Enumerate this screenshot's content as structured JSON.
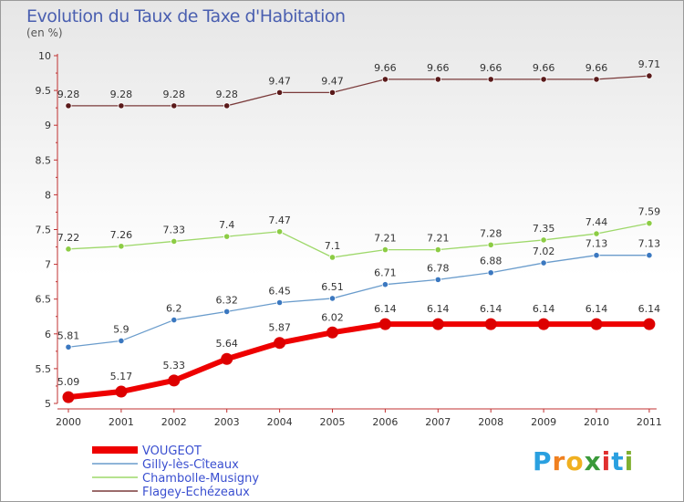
{
  "chart_data": {
    "type": "line",
    "title": "Evolution du Taux de Taxe d'Habitation",
    "subtitle": "(en %)",
    "x": [
      "2000",
      "2001",
      "2002",
      "2003",
      "2004",
      "2005",
      "2006",
      "2007",
      "2008",
      "2009",
      "2010",
      "2011"
    ],
    "y_ticks": [
      "5",
      "5.5",
      "6",
      "6.5",
      "7",
      "7.5",
      "8",
      "8.5",
      "9",
      "9.5",
      "10"
    ],
    "ylim": [
      5,
      10
    ],
    "grid": false,
    "legend_position": "bottom-left",
    "series": [
      {
        "name": "VOUGEOT",
        "color": "#ee0000",
        "marker": "#dd0000",
        "values": [
          5.09,
          5.17,
          5.33,
          5.64,
          5.87,
          6.02,
          6.14,
          6.14,
          6.14,
          6.14,
          6.14,
          6.14
        ],
        "labels": [
          "5.09",
          "5.17",
          "5.33",
          "5.64",
          "5.87",
          "6.02",
          "6.14",
          "6.14",
          "6.14",
          "6.14",
          "6.14",
          "6.14"
        ]
      },
      {
        "name": "Gilly-lès-Cîteaux",
        "color": "#6a9ccc",
        "marker": "#3b78c0",
        "values": [
          5.81,
          5.9,
          6.2,
          6.32,
          6.45,
          6.51,
          6.71,
          6.78,
          6.88,
          7.02,
          7.13,
          7.13
        ],
        "labels": [
          "5.81",
          "5.9",
          "6.2",
          "6.32",
          "6.45",
          "6.51",
          "6.71",
          "6.78",
          "6.88",
          "7.02",
          "7.13",
          "7.13"
        ]
      },
      {
        "name": "Chambolle-Musigny",
        "color": "#9ed86a",
        "marker": "#8ccc44",
        "values": [
          7.22,
          7.26,
          7.33,
          7.4,
          7.47,
          7.1,
          7.21,
          7.21,
          7.28,
          7.35,
          7.44,
          7.59
        ],
        "labels": [
          "7.22",
          "7.26",
          "7.33",
          "7.4",
          "7.47",
          "7.1",
          "7.21",
          "7.21",
          "7.28",
          "7.35",
          "7.44",
          "7.59"
        ]
      },
      {
        "name": "Flagey-Echézeaux",
        "color": "#7a3a3a",
        "marker": "#5a1a1a",
        "values": [
          9.28,
          9.28,
          9.28,
          9.28,
          9.47,
          9.47,
          9.66,
          9.66,
          9.66,
          9.66,
          9.66,
          9.71
        ],
        "labels": [
          "9.28",
          "9.28",
          "9.28",
          "9.28",
          "9.47",
          "9.47",
          "9.66",
          "9.66",
          "9.66",
          "9.66",
          "9.66",
          "9.71"
        ]
      }
    ]
  },
  "legend_text_color": "#3a4fd0",
  "logo": {
    "letters": [
      "P",
      "r",
      "o",
      "x",
      "i",
      "t",
      "i"
    ],
    "colors": [
      "#2aa0e0",
      "#f08020",
      "#f0b020",
      "#3a9a3a",
      "#e03030",
      "#2aa0e0",
      "#80b030"
    ]
  }
}
